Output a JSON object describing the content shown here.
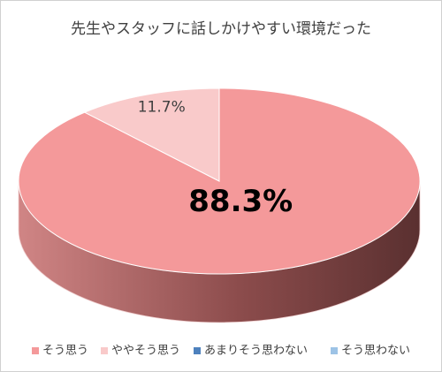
{
  "chart_data": {
    "type": "pie3d",
    "title": "先生やスタッフに話しかけやすい環境だった",
    "categories": [
      "そう思う",
      "ややそう思う",
      "あまりそう思わない",
      "そう思わない"
    ],
    "values": [
      88.3,
      11.7,
      0,
      0
    ],
    "value_labels": [
      "88.3%",
      "11.7%",
      null,
      null
    ],
    "colors": [
      "#f4999a",
      "#f9caca",
      "#4e81bd",
      "#9dc3e6"
    ],
    "legend": "bottom"
  }
}
